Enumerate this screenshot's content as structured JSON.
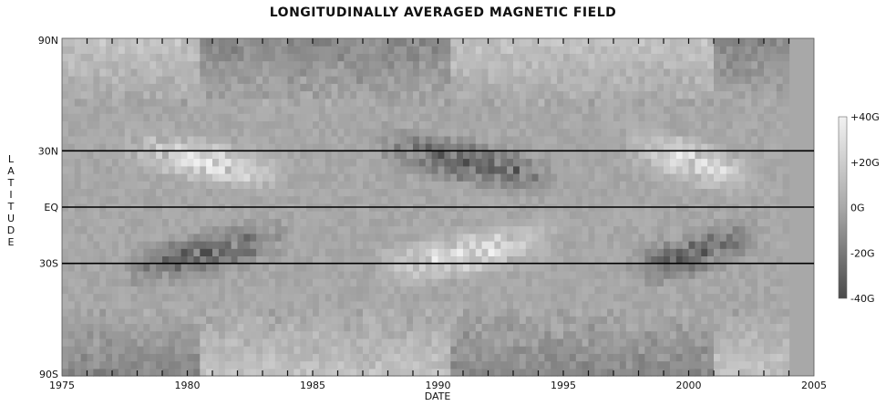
{
  "chart_data": {
    "type": "heatmap",
    "title": "LONGITUDINALLY AVERAGED MAGNETIC FIELD",
    "xlabel": "DATE",
    "ylabel": "LATITUDE",
    "xlim": [
      1975,
      2005
    ],
    "x_ticks": [
      "1975",
      "1980",
      "1985",
      "1990",
      "1995",
      "2000",
      "2005"
    ],
    "y_ticks": [
      {
        "label": "90N",
        "lat": 90
      },
      {
        "label": "30N",
        "lat": 30
      },
      {
        "label": "EQ",
        "lat": 0
      },
      {
        "label": "30S",
        "lat": -30
      },
      {
        "label": "90S",
        "lat": -90
      }
    ],
    "reference_lines_lat": [
      30,
      0,
      -30
    ],
    "data_end_year": 2003.9,
    "colorbar": {
      "labels": [
        "+40G",
        "+20G",
        "0G",
        "-20G",
        "-40G"
      ],
      "values": [
        40,
        20,
        0,
        -20,
        -40
      ],
      "colors": {
        "max": "#f2f2f2",
        "zero": "#a8a8a8",
        "min": "#4a4a4a"
      }
    },
    "activity_bands": [
      {
        "start": 1977.5,
        "end": 1985.5,
        "north_sign": 1,
        "south_sign": -1
      },
      {
        "start": 1987.5,
        "end": 1996.5,
        "north_sign": -1,
        "south_sign": 1
      },
      {
        "start": 1997.5,
        "end": 2003.9,
        "north_sign": 1,
        "south_sign": -1
      }
    ],
    "field_scale_G": 40
  }
}
